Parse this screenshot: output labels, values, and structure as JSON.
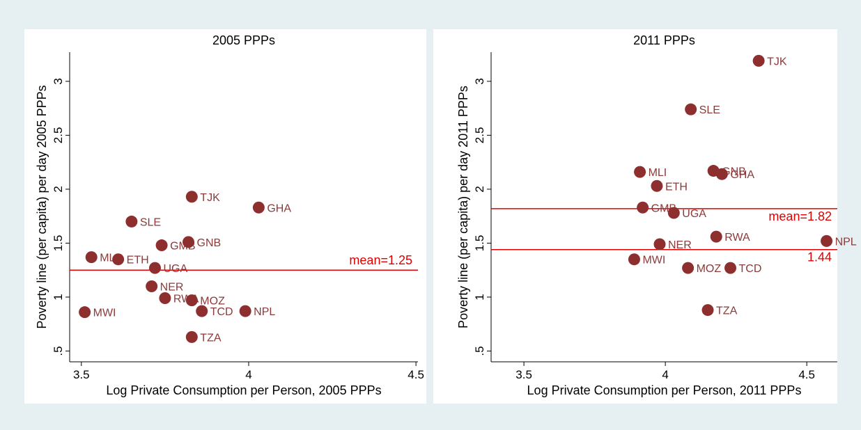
{
  "chart_data": [
    {
      "type": "scatter",
      "title": "2005 PPPs",
      "xlabel": "Log Private Consumption per Person, 2005 PPPs",
      "ylabel": "Poverty line (per capita) per day 2005 PPPs",
      "color": "#8e2f2f",
      "label_color": "#8b3a3a",
      "labels": [
        "MWI",
        "MLI",
        "ETH",
        "SLE",
        "GMB",
        "UGA",
        "NER",
        "RWA",
        "MOZ",
        "TCD",
        "TZA",
        "TJK",
        "GNB",
        "GHA",
        "NPL"
      ],
      "x": [
        3.51,
        3.53,
        3.61,
        3.65,
        3.74,
        3.72,
        3.71,
        3.75,
        3.83,
        3.86,
        3.83,
        3.83,
        3.82,
        4.03,
        3.99
      ],
      "y": [
        0.86,
        1.37,
        1.35,
        1.7,
        1.48,
        1.27,
        1.1,
        0.99,
        0.97,
        0.87,
        0.63,
        1.93,
        1.51,
        1.83,
        0.87
      ],
      "hlines": [
        {
          "value": 1.25,
          "label": "mean=1.25",
          "color": "#e00000"
        }
      ],
      "xlim": [
        3.465,
        4.506
      ],
      "ylim": [
        0.4,
        3.27
      ],
      "xticks": [
        3.5,
        4,
        4.5
      ],
      "yticks": [
        {
          "value": 0.5,
          "label": ".5"
        },
        1,
        1.5,
        2,
        2.5,
        3
      ]
    },
    {
      "type": "scatter",
      "title": "2011 PPPs",
      "xlabel": "Log Private Consumption per Person, 2011 PPPs",
      "ylabel": "Poverty line (per capita) per day 2011 PPPs",
      "color": "#8e2f2f",
      "label_color": "#8b3a3a",
      "labels": [
        "TJK",
        "SLE",
        "MLI",
        "GNB",
        "GHA",
        "ETH",
        "GMB",
        "UGA",
        "RWA",
        "NER",
        "NPL",
        "MWI",
        "MOZ",
        "TCD",
        "TZA"
      ],
      "x": [
        4.33,
        4.09,
        3.91,
        4.17,
        4.2,
        3.97,
        3.92,
        4.03,
        4.18,
        3.98,
        4.57,
        3.89,
        4.08,
        4.23,
        4.15
      ],
      "y": [
        3.19,
        2.74,
        2.16,
        2.17,
        2.14,
        2.03,
        1.83,
        1.78,
        1.56,
        1.49,
        1.52,
        1.35,
        1.27,
        1.27,
        0.88
      ],
      "hlines": [
        {
          "value": 1.82,
          "label": "mean=1.82",
          "color": "#e00000"
        },
        {
          "value": 1.44,
          "label": "1.44",
          "color": "#e00000"
        }
      ],
      "xlim": [
        3.384,
        4.608
      ],
      "ylim": [
        0.4,
        3.27
      ],
      "xticks": [
        3.5,
        4,
        4.5
      ],
      "yticks": [
        {
          "value": 0.5,
          "label": ".5"
        },
        1,
        1.5,
        2,
        2.5,
        3
      ]
    }
  ]
}
